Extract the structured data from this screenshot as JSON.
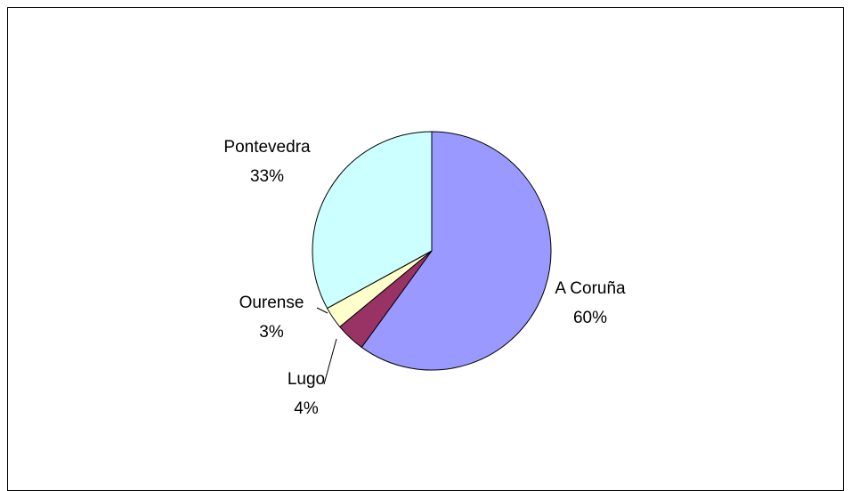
{
  "chart_data": {
    "type": "pie",
    "categories": [
      "A Coruña",
      "Lugo",
      "Ourense",
      "Pontevedra"
    ],
    "values": [
      60,
      4,
      3,
      33
    ],
    "value_labels": [
      "60%",
      "4%",
      "3%",
      "33%"
    ],
    "colors": [
      "#9999ff",
      "#993366",
      "#ffffcc",
      "#ccffff"
    ]
  }
}
